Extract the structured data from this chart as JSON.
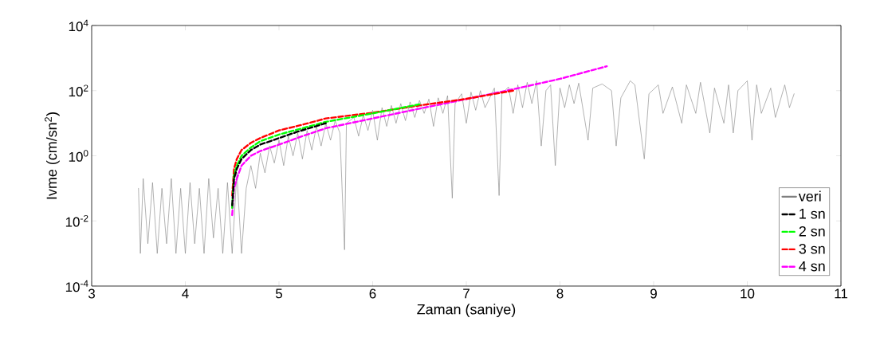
{
  "chart_data": {
    "type": "line",
    "xlabel": "Zaman (saniye)",
    "ylabel": "Ivme (cm/sn$^{2}$)",
    "log": "y",
    "xlim": [
      3,
      11
    ],
    "xticks": [
      3,
      4,
      5,
      6,
      7,
      8,
      9,
      10,
      11
    ],
    "ylim": [
      0.0001,
      10000
    ],
    "yticks": [
      {
        "value": 0.0001,
        "label": "10$^{-4}$"
      },
      {
        "value": 0.01,
        "label": "10$^{-2}$"
      },
      {
        "value": 1,
        "label": "10$^{0}$"
      },
      {
        "value": 100,
        "label": "10$^{2}$"
      },
      {
        "value": 10000,
        "label": "10$^{4}$"
      }
    ],
    "grid": false,
    "legend": "bottom right",
    "series": [
      {
        "name": "veri",
        "color": "#808080",
        "line_style": "solid",
        "x": [
          3.5,
          3.52,
          3.55,
          3.6,
          3.65,
          3.7,
          3.75,
          3.8,
          3.85,
          3.9,
          3.95,
          4.0,
          4.05,
          4.1,
          4.15,
          4.2,
          4.25,
          4.3,
          4.35,
          4.4,
          4.45,
          4.5,
          4.55,
          4.6,
          4.65,
          4.7,
          4.75,
          4.8,
          4.85,
          4.9,
          4.95,
          5.0,
          5.05,
          5.1,
          5.15,
          5.2,
          5.25,
          5.3,
          5.35,
          5.4,
          5.45,
          5.5,
          5.55,
          5.6,
          5.65,
          5.7,
          5.72,
          5.8,
          5.85,
          5.9,
          5.95,
          6.0,
          6.05,
          6.1,
          6.15,
          6.2,
          6.25,
          6.3,
          6.35,
          6.4,
          6.45,
          6.5,
          6.55,
          6.6,
          6.65,
          6.7,
          6.75,
          6.8,
          6.85,
          6.88,
          6.95,
          7.0,
          7.05,
          7.1,
          7.15,
          7.2,
          7.3,
          7.35,
          7.38,
          7.45,
          7.5,
          7.55,
          7.6,
          7.65,
          7.7,
          7.75,
          7.8,
          7.85,
          7.9,
          7.95,
          8.0,
          8.05,
          8.1,
          8.15,
          8.2,
          8.3,
          8.35,
          8.45,
          8.55,
          8.6,
          8.65,
          8.75,
          8.8,
          8.9,
          8.95,
          9.05,
          9.1,
          9.2,
          9.3,
          9.35,
          9.45,
          9.5,
          9.6,
          9.65,
          9.75,
          9.8,
          9.85,
          9.9,
          10.0,
          10.05,
          10.1,
          10.15,
          10.25,
          10.3,
          10.4,
          10.45,
          10.5
        ],
        "values": [
          0.1,
          0.001,
          0.2,
          0.002,
          0.15,
          0.001,
          0.1,
          0.002,
          0.2,
          0.001,
          0.1,
          0.001,
          0.15,
          0.002,
          0.1,
          0.001,
          0.2,
          0.003,
          0.1,
          0.001,
          0.15,
          0.001,
          0.3,
          0.001,
          0.1,
          0.5,
          0.1,
          1.2,
          0.3,
          2,
          0.6,
          3,
          0.5,
          4,
          1,
          5,
          0.8,
          6,
          1.5,
          8,
          2,
          10,
          3,
          12,
          5,
          0.0013,
          10,
          15,
          4,
          18,
          6,
          25,
          3,
          30,
          8,
          35,
          10,
          40,
          12,
          45,
          15,
          50,
          20,
          55,
          8,
          60,
          20,
          70,
          0.05,
          40,
          80,
          10,
          90,
          25,
          100,
          30,
          120,
          0.06,
          80,
          130,
          20,
          150,
          30,
          180,
          40,
          200,
          2,
          100,
          150,
          0.5,
          120,
          30,
          150,
          40,
          170,
          3,
          120,
          160,
          100,
          2,
          60,
          200,
          150,
          0.8,
          80,
          150,
          20,
          130,
          10,
          150,
          20,
          180,
          5,
          120,
          10,
          150,
          5,
          100,
          200,
          3,
          150,
          20,
          120,
          15,
          150,
          30,
          80
        ]
      },
      {
        "name": "1 sn",
        "color": "#000000",
        "line_style": "dashed",
        "x": [
          4.5,
          4.52,
          4.55,
          4.6,
          4.7,
          4.8,
          5.0,
          5.2,
          5.5
        ],
        "values": [
          0.03,
          0.2,
          0.4,
          0.8,
          1.5,
          2.2,
          3.5,
          5.5,
          10
        ]
      },
      {
        "name": "2 sn",
        "color": "#00ff00",
        "line_style": "dashed",
        "x": [
          4.5,
          4.52,
          4.55,
          4.6,
          4.7,
          4.8,
          5.0,
          5.25,
          5.5,
          6.0,
          6.5
        ],
        "values": [
          0.025,
          0.25,
          0.5,
          1,
          1.8,
          2.8,
          4.5,
          7,
          11,
          20,
          38
        ]
      },
      {
        "name": "3 sn",
        "color": "#ff0000",
        "line_style": "dashed",
        "x": [
          4.5,
          4.52,
          4.55,
          4.6,
          4.7,
          4.8,
          5.0,
          5.25,
          5.5,
          6.0,
          6.5,
          7.0,
          7.5
        ],
        "values": [
          0.06,
          0.4,
          0.8,
          1.5,
          2.5,
          3.5,
          6,
          9,
          14,
          21,
          35,
          56,
          100
        ]
      },
      {
        "name": "4 sn",
        "color": "#ff00ff",
        "line_style": "dashed",
        "x": [
          4.5,
          4.52,
          4.55,
          4.6,
          4.7,
          4.8,
          5.0,
          5.25,
          5.5,
          6.0,
          6.5,
          7.0,
          7.5,
          8.0,
          8.5
        ],
        "values": [
          0.015,
          0.1,
          0.2,
          0.5,
          1,
          1.4,
          2.2,
          4,
          7,
          14,
          28,
          55,
          110,
          230,
          560
        ]
      }
    ]
  }
}
